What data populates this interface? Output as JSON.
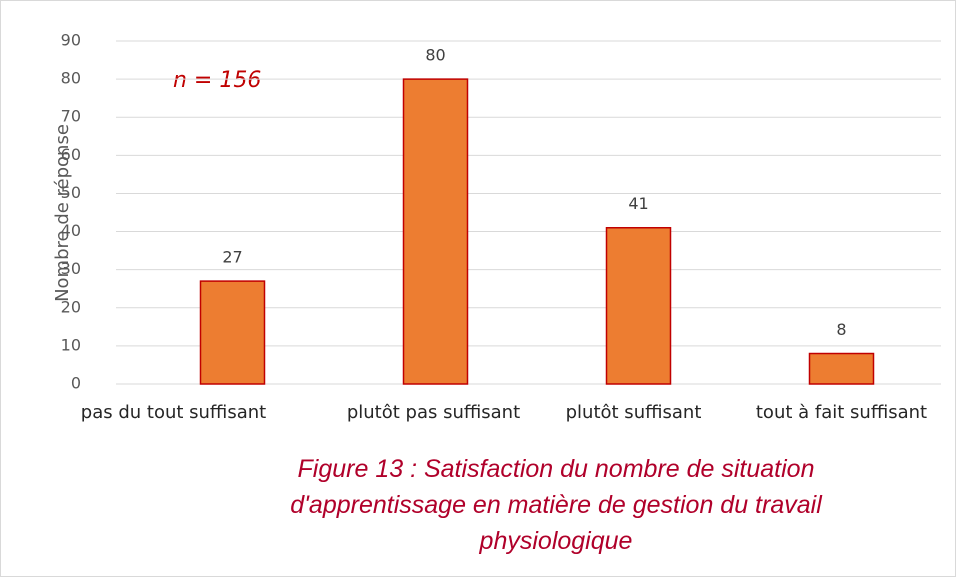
{
  "chart_data": {
    "type": "bar",
    "ylabel": "Nombre de réponse",
    "annotation": "n = 156",
    "caption": "Figure 13 : Satisfaction du nombre de situation d'apprentissage en matière de gestion du travail physiologique",
    "categories": [
      "pas du tout suffisant",
      "plutôt pas suffisant",
      "plutôt suffisant",
      "tout à fait suffisant"
    ],
    "values": [
      27,
      80,
      41,
      8
    ],
    "color": "#ed7d31",
    "edge_color": "#c00000",
    "ylim": [
      0,
      90
    ],
    "yticks": [
      0,
      10,
      20,
      30,
      40,
      50,
      60,
      70,
      80,
      90
    ],
    "grid": true
  }
}
